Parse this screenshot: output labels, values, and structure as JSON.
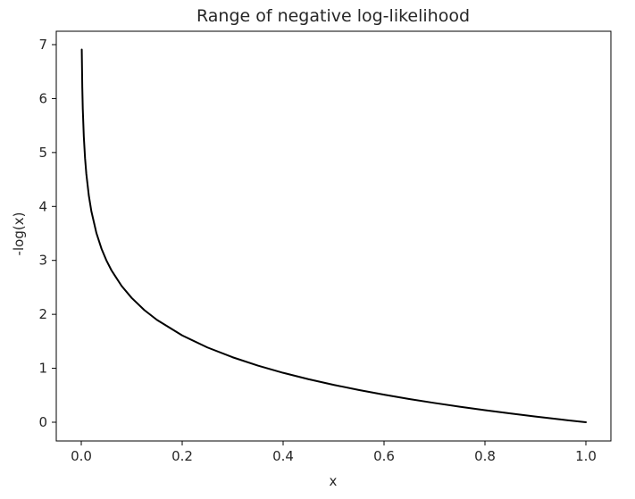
{
  "chart_data": {
    "type": "line",
    "title": "Range of negative log-likelihood",
    "xlabel": "x",
    "ylabel": "-log(x)",
    "xlim": [
      0.0,
      1.0
    ],
    "ylim": [
      0,
      7
    ],
    "x_ticks": [
      0.0,
      0.2,
      0.4,
      0.6,
      0.8,
      1.0
    ],
    "x_tick_labels": [
      "0.0",
      "0.2",
      "0.4",
      "0.6",
      "0.8",
      "1.0"
    ],
    "y_ticks": [
      0,
      1,
      2,
      3,
      4,
      5,
      6,
      7
    ],
    "y_tick_labels": [
      "0",
      "1",
      "2",
      "3",
      "4",
      "5",
      "6",
      "7"
    ],
    "grid": false,
    "legend": "none",
    "series": [
      {
        "color": "#000000",
        "x": [
          0.001,
          0.002,
          0.003,
          0.005,
          0.0075,
          0.01,
          0.015,
          0.02,
          0.03,
          0.04,
          0.05,
          0.06,
          0.08,
          0.1,
          0.125,
          0.15,
          0.2,
          0.25,
          0.3,
          0.35,
          0.4,
          0.45,
          0.5,
          0.55,
          0.6,
          0.65,
          0.7,
          0.75,
          0.8,
          0.85,
          0.9,
          0.95,
          1.0
        ],
        "y": [
          6.908,
          6.215,
          5.809,
          5.298,
          4.893,
          4.605,
          4.2,
          3.912,
          3.507,
          3.219,
          2.996,
          2.813,
          2.526,
          2.303,
          2.079,
          1.897,
          1.609,
          1.386,
          1.204,
          1.05,
          0.916,
          0.799,
          0.693,
          0.598,
          0.511,
          0.431,
          0.357,
          0.288,
          0.223,
          0.163,
          0.105,
          0.051,
          0.0
        ]
      }
    ]
  }
}
